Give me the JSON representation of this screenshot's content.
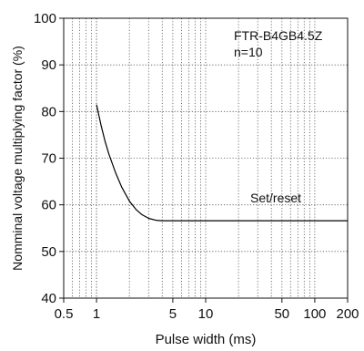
{
  "chart_data": {
    "type": "line",
    "title": "",
    "xlabel": "Pulse width (ms)",
    "ylabel": "Nomminal voltage multiplying factor (%)",
    "x_scale": "log",
    "xlim": [
      0.5,
      200
    ],
    "ylim": [
      40,
      100
    ],
    "x_ticks": [
      0.5,
      1,
      5,
      10,
      50,
      100,
      200
    ],
    "x_tick_labels": [
      "0.5",
      "1",
      "5",
      "10",
      "50",
      "100",
      "200"
    ],
    "y_ticks": [
      40,
      50,
      60,
      70,
      80,
      90,
      100
    ],
    "y_tick_labels": [
      "40",
      "50",
      "60",
      "70",
      "80",
      "90",
      "100"
    ],
    "grid": true,
    "annotations": [
      "FTR-B4GB4.5Z",
      "n=10",
      "Set/reset"
    ],
    "series": [
      {
        "name": "Set/reset",
        "x": [
          1.0,
          1.1,
          1.2,
          1.3,
          1.5,
          1.7,
          2.0,
          2.3,
          2.6,
          3.0,
          3.5,
          4.0,
          5.0,
          10,
          50,
          100,
          200
        ],
        "y": [
          81.5,
          77.0,
          73.5,
          70.8,
          66.8,
          63.8,
          60.8,
          59.0,
          57.9,
          57.1,
          56.7,
          56.6,
          56.6,
          56.6,
          56.6,
          56.6,
          56.6
        ]
      }
    ]
  },
  "colors": {
    "axis": "#111111",
    "grid": "#555555",
    "line": "#000000",
    "background": "#ffffff"
  }
}
